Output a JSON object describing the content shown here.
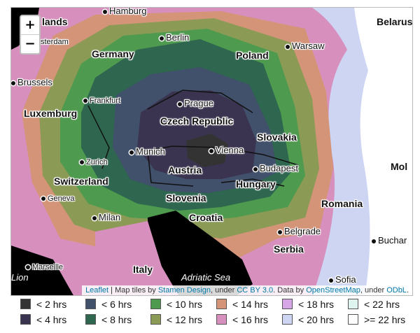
{
  "zoom": {
    "in_label": "+",
    "out_label": "−"
  },
  "countries": {
    "netherlands": "lands",
    "germany": "Germany",
    "poland": "Poland",
    "belarus": "Belarus",
    "luxemburg": "Luxemburg",
    "czech": "Czech Republic",
    "slovakia": "Slovakia",
    "austria": "Austria",
    "switzerland": "Switzerland",
    "hungary": "Hungary",
    "slovenia": "Slovenia",
    "croatia": "Croatia",
    "romania": "Romania",
    "serbia": "Serbia",
    "italy": "Italy",
    "moldova": "Mol"
  },
  "cities": {
    "hamburg": "Hamburg",
    "amsterdam": "sterdam",
    "berlin": "Berlin",
    "warsaw": "Warsaw",
    "brussels": "Brussels",
    "frankfurt": "Frankfurt",
    "prague": "Prague",
    "munich": "Munich",
    "vienna": "Vienna",
    "zurich": "Zurich",
    "budapest": "Budapest",
    "geneva": "Geneva",
    "milan": "Milan",
    "belgrade": "Belgrade",
    "bucharest": "Buchar",
    "marseille": "Marseille",
    "sofia": "Sofia",
    "lion": "Lion"
  },
  "sea": {
    "adriatic": "Adriatic Sea"
  },
  "attribution": {
    "leaflet": "Leaflet",
    "sep": " | ",
    "tiles_prefix": "Map tiles by ",
    "stamen": "Stamen Design",
    "under1": ", under ",
    "ccby": "CC BY 3.0",
    "data_by": ". Data by ",
    "osm": "OpenStreetMap",
    "under2": ", under ",
    "odbl": "ODbL",
    "end": "."
  },
  "legend": [
    {
      "label": "< 2 hrs",
      "color": "#333333"
    },
    {
      "label": "< 4 hrs",
      "color": "#3b3450"
    },
    {
      "label": "< 6 hrs",
      "color": "#41506b"
    },
    {
      "label": "< 8 hrs",
      "color": "#2e6650"
    },
    {
      "label": "< 10 hrs",
      "color": "#4e9a4e"
    },
    {
      "label": "< 12 hrs",
      "color": "#8b9b56"
    },
    {
      "label": "< 14 hrs",
      "color": "#d49478"
    },
    {
      "label": "< 16 hrs",
      "color": "#d78fbd"
    },
    {
      "label": "< 18 hrs",
      "color": "#d7a6e6"
    },
    {
      "label": "< 20 hrs",
      "color": "#cdd5f2"
    },
    {
      "label": "< 22 hrs",
      "color": "#dff3ef"
    },
    {
      "label": ">= 22 hrs",
      "color": "#ffffff"
    }
  ]
}
